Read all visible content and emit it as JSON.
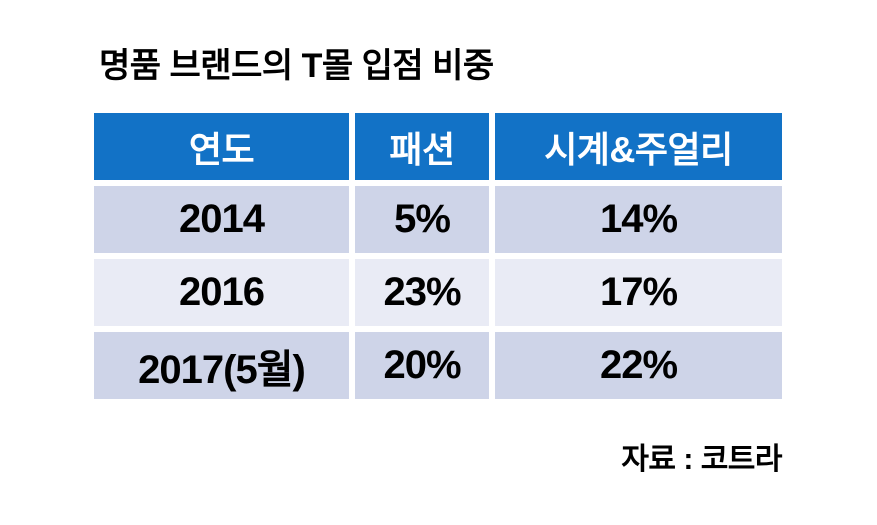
{
  "page": {
    "title": "명품 브랜드의 T몰 입점 비중",
    "source": "자료 : 코트라"
  },
  "chart_data": {
    "type": "table",
    "title": "명품 브랜드의 T몰 입점 비중",
    "columns": [
      "연도",
      "패션",
      "시계&주얼리"
    ],
    "rows": [
      [
        "2014",
        "5%",
        "14%"
      ],
      [
        "2016",
        "23%",
        "17%"
      ],
      [
        "2017(5월)",
        "20%",
        "22%"
      ]
    ],
    "values_numeric": {
      "categories": [
        "2014",
        "2016",
        "2017(5월)"
      ],
      "series": [
        {
          "name": "패션",
          "values": [
            5,
            23,
            20
          ],
          "unit": "%"
        },
        {
          "name": "시계&주얼리",
          "values": [
            14,
            17,
            22
          ],
          "unit": "%"
        }
      ]
    },
    "source": "자료 : 코트라"
  },
  "colors": {
    "header_bg": "#1272C6",
    "header_text": "#FFFFFF",
    "row_odd_bg": "#CED4E8",
    "row_even_bg": "#E9EBF5",
    "body_text": "#000000",
    "page_bg": "#FFFFFF"
  }
}
